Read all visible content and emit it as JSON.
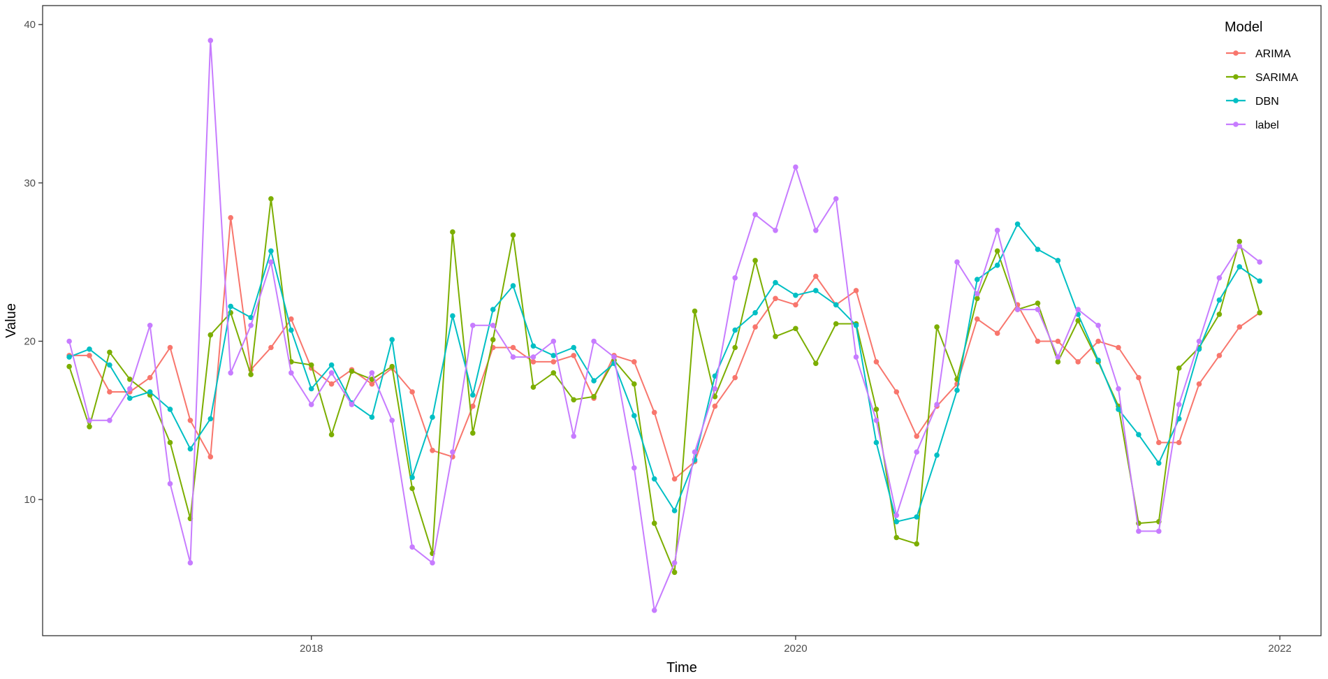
{
  "chart_data": {
    "type": "line",
    "xlabel": "Time",
    "ylabel": "Value",
    "x_ticks": [
      2018,
      2020,
      2022
    ],
    "y_ticks": [
      10,
      20,
      30,
      40
    ],
    "xlim": [
      2016.89,
      2022.17
    ],
    "ylim": [
      1.4,
      41.2
    ],
    "grid": false,
    "legend": {
      "title": "Model",
      "position": "top-right"
    },
    "x_start": 2017.0,
    "x_step": 0.083333,
    "series": [
      {
        "name": "ARIMA",
        "color": "#F8766D",
        "values": [
          19.1,
          19.1,
          16.8,
          16.8,
          17.7,
          19.6,
          15.0,
          12.7,
          27.8,
          18.2,
          19.6,
          21.4,
          18.3,
          17.3,
          18.2,
          17.3,
          18.3,
          16.8,
          13.1,
          12.7,
          15.9,
          19.6,
          19.6,
          18.7,
          18.7,
          19.1,
          16.4,
          19.1,
          18.7,
          15.5,
          11.3,
          12.4,
          15.9,
          17.7,
          20.9,
          22.7,
          22.3,
          24.1,
          22.3,
          23.2,
          18.7,
          16.8,
          14.0,
          15.9,
          17.3,
          21.4,
          20.5,
          22.3,
          20.0,
          20.0,
          18.7,
          20.0,
          19.6,
          17.7,
          13.6,
          13.6,
          17.3,
          19.1,
          20.9,
          21.8
        ]
      },
      {
        "name": "SARIMA",
        "color": "#7CAE00",
        "values": [
          18.4,
          14.6,
          19.3,
          17.6,
          16.6,
          13.6,
          8.8,
          20.4,
          21.8,
          17.9,
          29.0,
          18.7,
          18.5,
          14.1,
          18.1,
          17.6,
          18.4,
          10.7,
          6.6,
          26.9,
          14.2,
          20.1,
          26.7,
          17.1,
          18.0,
          16.3,
          16.5,
          18.8,
          17.3,
          8.5,
          5.4,
          21.9,
          16.5,
          19.6,
          25.1,
          20.3,
          20.8,
          18.6,
          21.1,
          21.1,
          15.7,
          7.6,
          7.2,
          20.9,
          17.6,
          22.7,
          25.7,
          22.0,
          22.4,
          18.7,
          21.3,
          18.7,
          15.9,
          8.5,
          8.6,
          18.3,
          19.6,
          21.7,
          26.3,
          21.8
        ]
      },
      {
        "name": "DBN",
        "color": "#00BFC4",
        "values": [
          19.0,
          19.5,
          18.5,
          16.4,
          16.8,
          15.7,
          13.2,
          15.1,
          22.2,
          21.5,
          25.7,
          20.7,
          17.0,
          18.5,
          16.1,
          15.2,
          20.1,
          11.4,
          15.2,
          21.6,
          16.6,
          22.0,
          23.5,
          19.7,
          19.1,
          19.6,
          17.5,
          18.6,
          15.3,
          11.3,
          9.3,
          12.5,
          17.8,
          20.7,
          21.8,
          23.7,
          22.9,
          23.2,
          22.3,
          21.0,
          13.6,
          8.6,
          8.9,
          12.8,
          16.9,
          23.9,
          24.8,
          27.4,
          25.8,
          25.1,
          21.7,
          18.8,
          15.7,
          14.1,
          12.3,
          15.1,
          19.5,
          22.6,
          24.7,
          23.8
        ]
      },
      {
        "name": "label",
        "color": "#C77CFF",
        "values": [
          20,
          15,
          15,
          17,
          21,
          11,
          6,
          39,
          18,
          21,
          25,
          18,
          16,
          18,
          16,
          18,
          15,
          7,
          6,
          13,
          21,
          21,
          19,
          19,
          20,
          14,
          20,
          19,
          12,
          3,
          6,
          13,
          17,
          24,
          28,
          27,
          31,
          27,
          29,
          19,
          15,
          9,
          13,
          16,
          25,
          23,
          27,
          22,
          22,
          19,
          22,
          21,
          17,
          8,
          8,
          16,
          20,
          24,
          26,
          25
        ]
      }
    ]
  },
  "colors": {
    "axis": "#333333",
    "tick_text": "#4d4d4d",
    "background": "#ffffff"
  }
}
